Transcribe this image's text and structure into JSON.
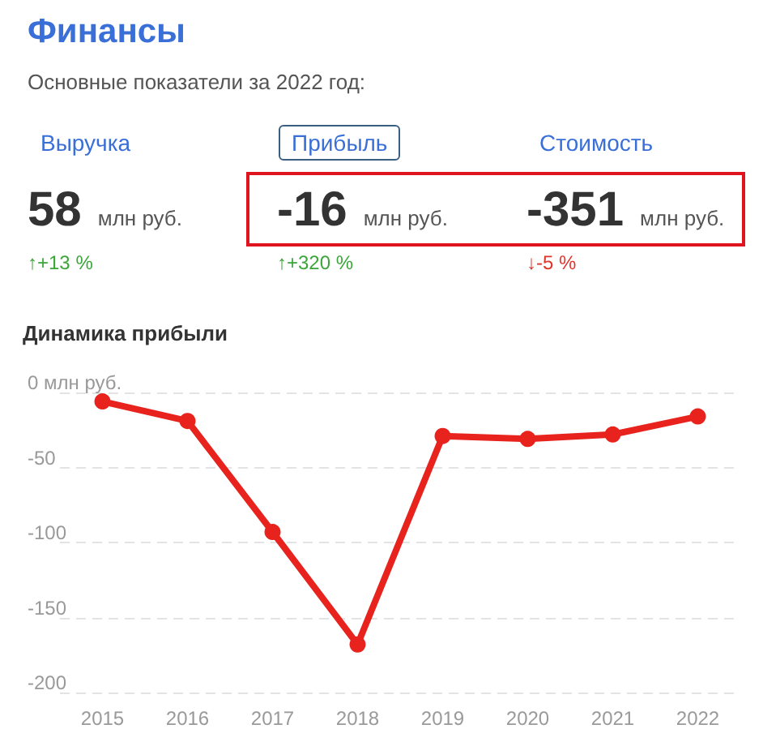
{
  "chart_data": [
    {
      "type": "other",
      "title": "Финансы",
      "subtitle": "Основные показатели за 2022 год:",
      "categories": [
        "Выручка",
        "Прибыль",
        "Стоимость"
      ],
      "values": [
        58,
        -16,
        -351
      ],
      "data_labels": true,
      "annotations": [
        "млн руб.",
        "млн руб.",
        "млн руб.",
        "↑+13 %",
        "↑+320 %",
        "↓-5 %"
      ],
      "colors": [
        "#3aa63a",
        "#3aa63a",
        "#e0352b"
      ]
    },
    {
      "type": "line",
      "title": "Динамика прибыли",
      "categories": [
        "2015",
        "2016",
        "2017",
        "2018",
        "2019",
        "2020",
        "2021",
        "2022"
      ],
      "series": [
        {
          "color": "#e8231d",
          "values": [
            -6,
            -19,
            -93,
            -168,
            -29,
            -31,
            -28,
            -16
          ]
        }
      ],
      "ylim": [
        -200,
        0
      ],
      "yticks": [
        {
          "value": 0,
          "label": "0 млн руб."
        },
        -50,
        -100,
        -150,
        -200
      ],
      "grid": "y",
      "marker": "circle",
      "line_style": "solid"
    }
  ]
}
